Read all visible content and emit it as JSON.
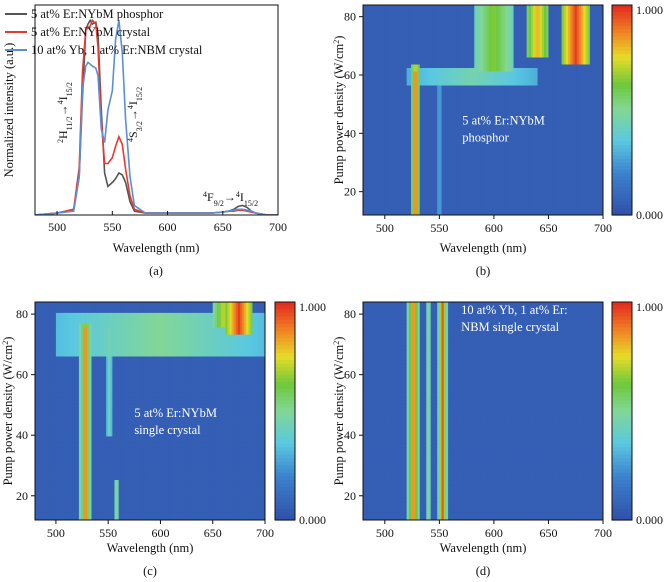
{
  "chart_data": [
    {
      "id": "a",
      "type": "line",
      "panel_label": "(a)",
      "title": "",
      "xlabel": "Wavelength (nm)",
      "ylabel": "Normalized intensity (a.u.)",
      "xlim": [
        480,
        700
      ],
      "ylim": [
        0,
        1.1
      ],
      "xticks": [
        500,
        550,
        600,
        650,
        700
      ],
      "legend": "top-left",
      "series": [
        {
          "name": "5 at% Er:NYbM phosphor",
          "color": "#555555",
          "x": [
            480,
            500,
            515,
            520,
            523,
            526,
            528,
            530,
            532,
            535,
            537,
            540,
            543,
            546,
            550,
            553,
            556,
            559,
            562,
            566,
            570,
            580,
            600,
            640,
            650,
            655,
            660,
            664,
            668,
            672,
            676,
            680,
            690,
            700
          ],
          "y": [
            0.0,
            0.01,
            0.03,
            0.2,
            0.62,
            0.97,
            1.0,
            1.02,
            1.0,
            1.01,
            0.95,
            0.55,
            0.22,
            0.15,
            0.17,
            0.19,
            0.22,
            0.21,
            0.17,
            0.07,
            0.02,
            0.01,
            0.01,
            0.01,
            0.015,
            0.02,
            0.03,
            0.045,
            0.05,
            0.04,
            0.02,
            0.01,
            0.0,
            0.0
          ]
        },
        {
          "name": "5 at% Er:NYbM crystal",
          "color": "#e8392f",
          "x": [
            480,
            500,
            515,
            520,
            523,
            526,
            528,
            530,
            532,
            535,
            537,
            540,
            543,
            546,
            550,
            553,
            556,
            559,
            562,
            566,
            570,
            580,
            600,
            640,
            650,
            655,
            660,
            664,
            668,
            672,
            676,
            680,
            690,
            700
          ],
          "y": [
            0.0,
            0.01,
            0.03,
            0.25,
            0.75,
            0.97,
            0.98,
            0.99,
            1.02,
            1.0,
            0.88,
            0.5,
            0.27,
            0.27,
            0.3,
            0.36,
            0.41,
            0.37,
            0.24,
            0.1,
            0.03,
            0.01,
            0.01,
            0.01,
            0.015,
            0.02,
            0.02,
            0.025,
            0.025,
            0.02,
            0.015,
            0.01,
            0.0,
            0.0
          ]
        },
        {
          "name": "10 at% Yb, 1 at% Er:NBM crystal",
          "color": "#5b8fd4",
          "x": [
            480,
            500,
            515,
            520,
            523,
            526,
            528,
            530,
            532,
            535,
            537,
            540,
            543,
            546,
            550,
            553,
            556,
            559,
            562,
            566,
            570,
            580,
            600,
            640,
            650,
            655,
            660,
            664,
            668,
            672,
            676,
            680,
            690,
            700
          ],
          "y": [
            0.0,
            0.01,
            0.02,
            0.2,
            0.66,
            0.78,
            0.8,
            0.79,
            0.78,
            0.77,
            0.73,
            0.45,
            0.38,
            0.55,
            0.65,
            0.92,
            1.02,
            0.85,
            0.5,
            0.2,
            0.05,
            0.01,
            0.01,
            0.01,
            0.015,
            0.02,
            0.025,
            0.03,
            0.03,
            0.025,
            0.02,
            0.01,
            0.0,
            0.0
          ]
        }
      ],
      "annotations": {
        "a1_main": "2",
        "a1_h": "H",
        "a1_sub1": "11/2",
        "a1_sup": "4",
        "a1_i": "I",
        "a1_sub2": "15/2",
        "a2_main": "4",
        "a2_s": "S",
        "a2_sub1": "3/2",
        "a2_sup": "4",
        "a2_i": "I",
        "a2_sub2": "15/2",
        "a3_main": "4",
        "a3_f": "F",
        "a3_sub1": "9/2",
        "a3_sup": "4",
        "a3_i": "I",
        "a3_sub2": "15/2",
        "arrow": "→"
      }
    },
    {
      "id": "b",
      "type": "heatmap",
      "panel_label": "(b)",
      "xlabel": "Wavelength (nm)",
      "ylabel_main": "Pump power density (W/cm",
      "ylabel_sup": "2",
      "ylabel_end": ")",
      "xlim": [
        480,
        700
      ],
      "ylim": [
        12,
        84
      ],
      "xticks": [
        500,
        550,
        600,
        650,
        700
      ],
      "yticks": [
        20,
        40,
        60,
        80
      ],
      "colorbar": {
        "min": 0.0,
        "max": 1.0,
        "min_label": "0.000",
        "max_label": "1.000"
      },
      "annotation": [
        "5 at% Er:NYbM",
        "phosphor"
      ],
      "bands": [
        {
          "center": 528,
          "width": 5,
          "y_from": 12,
          "y_to": 61,
          "value": 0.98
        },
        {
          "center": 528,
          "width": 9,
          "y_from": 12,
          "y_to": 63,
          "value": 0.75
        },
        {
          "center": 550,
          "width": 4,
          "y_from": 12,
          "y_to": 62,
          "value": 0.3
        },
        {
          "center": 600,
          "width": 35,
          "y_from": 61,
          "y_to": 84,
          "value": 0.65
        },
        {
          "center": 640,
          "width": 20,
          "y_from": 66,
          "y_to": 84,
          "value": 0.82
        },
        {
          "center": 675,
          "width": 25,
          "y_from": 64,
          "y_to": 84,
          "value": 0.97
        },
        {
          "center": 580,
          "width": 120,
          "y_from": 56,
          "y_to": 62,
          "value": 0.45
        }
      ]
    },
    {
      "id": "c",
      "type": "heatmap",
      "panel_label": "(c)",
      "xlabel": "Wavelength (nm)",
      "ylabel_main": "Pump power density (W/cm",
      "ylabel_sup": "2",
      "ylabel_end": ")",
      "xlim": [
        480,
        700
      ],
      "ylim": [
        12,
        84
      ],
      "xticks": [
        500,
        550,
        600,
        650,
        700
      ],
      "yticks": [
        20,
        40,
        60,
        80
      ],
      "colorbar": {
        "min": 0.0,
        "max": 1.0,
        "min_label": "0.000",
        "max_label": "1.000"
      },
      "annotation": [
        "5 at% Er:NYbM",
        "single crystal"
      ],
      "bands": [
        {
          "center": 528,
          "width": 5,
          "y_from": 12,
          "y_to": 76,
          "value": 0.98
        },
        {
          "center": 528,
          "width": 10,
          "y_from": 12,
          "y_to": 77,
          "value": 0.7
        },
        {
          "center": 551,
          "width": 5,
          "y_from": 40,
          "y_to": 76,
          "value": 0.45
        },
        {
          "center": 558,
          "width": 3,
          "y_from": 12,
          "y_to": 25,
          "value": 0.6
        },
        {
          "center": 600,
          "width": 200,
          "y_from": 66,
          "y_to": 80,
          "value": 0.5
        },
        {
          "center": 620,
          "width": 30,
          "y_from": 69,
          "y_to": 74,
          "value": 0.25
        },
        {
          "center": 675,
          "width": 25,
          "y_from": 73,
          "y_to": 84,
          "value": 0.97
        },
        {
          "center": 660,
          "width": 20,
          "y_from": 76,
          "y_to": 84,
          "value": 0.72
        }
      ]
    },
    {
      "id": "d",
      "type": "heatmap",
      "panel_label": "(d)",
      "xlabel": "Wavelength (nm)",
      "ylabel_main": "Pump power density (W/cm",
      "ylabel_sup": "2",
      "ylabel_end": ")",
      "xlim": [
        480,
        700
      ],
      "ylim": [
        12,
        84
      ],
      "xticks": [
        500,
        550,
        600,
        650,
        700
      ],
      "yticks": [
        20,
        40,
        60,
        80
      ],
      "colorbar": {
        "min": 0.0,
        "max": 1.0,
        "min_label": "0.000",
        "max_label": "1.000"
      },
      "annotation": [
        "10 at% Yb, 1 at% Er:",
        "NBM single crystal"
      ],
      "bands": [
        {
          "center": 526,
          "width": 6,
          "y_from": 12,
          "y_to": 84,
          "value": 0.95
        },
        {
          "center": 526,
          "width": 10,
          "y_from": 12,
          "y_to": 84,
          "value": 0.7
        },
        {
          "center": 540,
          "width": 4,
          "y_from": 12,
          "y_to": 84,
          "value": 0.55
        },
        {
          "center": 553,
          "width": 5,
          "y_from": 12,
          "y_to": 84,
          "value": 0.93
        },
        {
          "center": 553,
          "width": 9,
          "y_from": 12,
          "y_to": 84,
          "value": 0.6
        }
      ]
    }
  ]
}
